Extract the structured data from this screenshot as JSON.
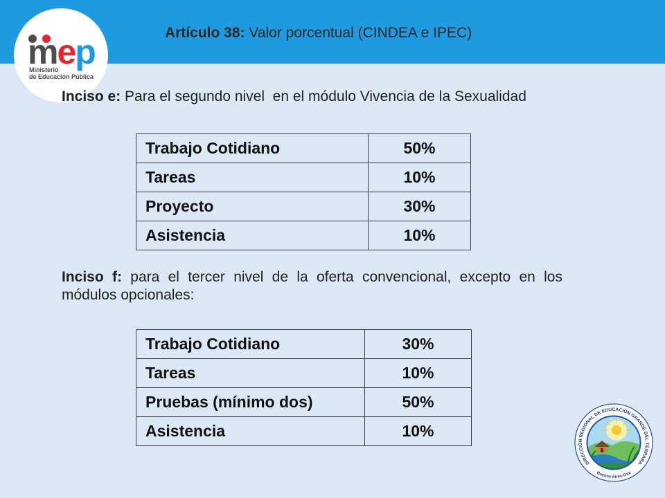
{
  "header": {
    "title_label": "Artículo 38:",
    "title_text": "Valor porcentual (CINDEA e IPEC)"
  },
  "logo": {
    "wordmark": "mep",
    "line1": "Ministerio",
    "line2": "de Educación Pública"
  },
  "section_e": {
    "label": "Inciso e:",
    "text": "Para el segundo nivel  en el módulo Vivencia de la Sexualidad",
    "rows": [
      {
        "item": "Trabajo Cotidiano",
        "percent": "50%"
      },
      {
        "item": "Tareas",
        "percent": "10%"
      },
      {
        "item": "Proyecto",
        "percent": "30%"
      },
      {
        "item": "Asistencia",
        "percent": "10%"
      }
    ]
  },
  "section_f": {
    "label": "Inciso f:",
    "text": "para el tercer nivel de la oferta convencional, excepto en los módulos opcionales:",
    "rows": [
      {
        "item": "Trabajo Cotidiano",
        "percent": "30%"
      },
      {
        "item": "Tareas",
        "percent": "10%"
      },
      {
        "item": "Pruebas (mínimo dos)",
        "percent": "50%"
      },
      {
        "item": "Asistencia",
        "percent": "10%"
      }
    ]
  },
  "seal": {
    "arc_text": "DIRECCIÓN REGIONAL DE EDUCACIÓN GRANDE DEL TÉRRABA",
    "bottom_text": "Buenos Aires-Osa"
  },
  "colors": {
    "header_band": "#1e9be0",
    "background": "#dce8f5",
    "logo_m": "#4d4d4d",
    "logo_e": "#e3262f",
    "logo_p": "#1e9be0",
    "seal_blue": "#24509e"
  }
}
